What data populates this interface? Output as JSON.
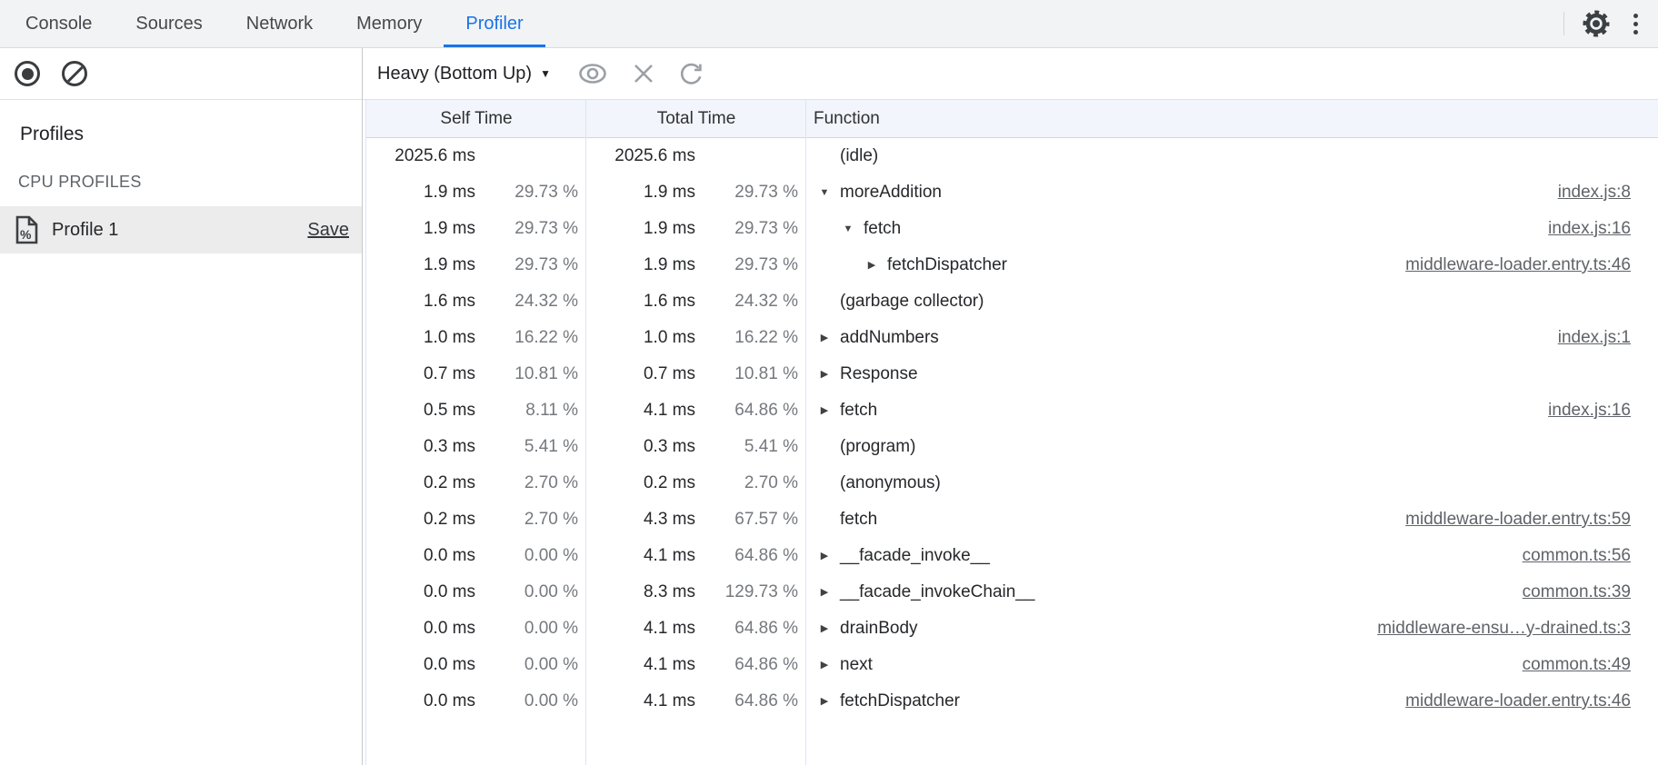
{
  "colors": {
    "accent_blue": "#1a73e8",
    "tab_bar_bg": "#f1f3f4",
    "selected_profile_bg": "#ececec",
    "grid_header_bg": "#f2f5fb",
    "grid_line": "#dce4f7",
    "percent_text": "#75797e",
    "link_text": "#5f6368",
    "icon_gray": "#9aa0a6",
    "icon_dark": "#3c4043"
  },
  "tabs": {
    "items": [
      "Console",
      "Sources",
      "Network",
      "Memory",
      "Profiler"
    ],
    "active": "Profiler"
  },
  "top_icons": [
    "gear-icon",
    "kebab-menu-icon"
  ],
  "toolbar": {
    "record_icon": "record-icon",
    "clear_icon": "clear-icon",
    "view_mode": "Heavy (Bottom Up)",
    "caret": "▼",
    "icons": [
      "eye-icon",
      "close-icon",
      "refresh-icon"
    ]
  },
  "sidebar": {
    "heading": "Profiles",
    "section_label": "CPU PROFILES",
    "profile": {
      "icon": "profile-document-icon",
      "name": "Profile 1",
      "action": "Save"
    }
  },
  "table": {
    "headers": {
      "self": "Self Time",
      "total": "Total Time",
      "function": "Function"
    },
    "rows": [
      {
        "self_ms": "2025.6 ms",
        "self_pct": "",
        "total_ms": "2025.6 ms",
        "total_pct": "",
        "depth": 0,
        "arrow": "",
        "name": "(idle)",
        "link": ""
      },
      {
        "self_ms": "1.9 ms",
        "self_pct": "29.73 %",
        "total_ms": "1.9 ms",
        "total_pct": "29.73 %",
        "depth": 0,
        "arrow": "down",
        "name": "moreAddition",
        "link": "index.js:8"
      },
      {
        "self_ms": "1.9 ms",
        "self_pct": "29.73 %",
        "total_ms": "1.9 ms",
        "total_pct": "29.73 %",
        "depth": 1,
        "arrow": "down",
        "name": "fetch",
        "link": "index.js:16"
      },
      {
        "self_ms": "1.9 ms",
        "self_pct": "29.73 %",
        "total_ms": "1.9 ms",
        "total_pct": "29.73 %",
        "depth": 2,
        "arrow": "right",
        "name": "fetchDispatcher",
        "link": "middleware-loader.entry.ts:46"
      },
      {
        "self_ms": "1.6 ms",
        "self_pct": "24.32 %",
        "total_ms": "1.6 ms",
        "total_pct": "24.32 %",
        "depth": 0,
        "arrow": "",
        "name": "(garbage collector)",
        "link": ""
      },
      {
        "self_ms": "1.0 ms",
        "self_pct": "16.22 %",
        "total_ms": "1.0 ms",
        "total_pct": "16.22 %",
        "depth": 0,
        "arrow": "right",
        "name": "addNumbers",
        "link": "index.js:1"
      },
      {
        "self_ms": "0.7 ms",
        "self_pct": "10.81 %",
        "total_ms": "0.7 ms",
        "total_pct": "10.81 %",
        "depth": 0,
        "arrow": "right",
        "name": "Response",
        "link": ""
      },
      {
        "self_ms": "0.5 ms",
        "self_pct": "8.11 %",
        "total_ms": "4.1 ms",
        "total_pct": "64.86 %",
        "depth": 0,
        "arrow": "right",
        "name": "fetch",
        "link": "index.js:16"
      },
      {
        "self_ms": "0.3 ms",
        "self_pct": "5.41 %",
        "total_ms": "0.3 ms",
        "total_pct": "5.41 %",
        "depth": 0,
        "arrow": "",
        "name": "(program)",
        "link": ""
      },
      {
        "self_ms": "0.2 ms",
        "self_pct": "2.70 %",
        "total_ms": "0.2 ms",
        "total_pct": "2.70 %",
        "depth": 0,
        "arrow": "",
        "name": "(anonymous)",
        "link": ""
      },
      {
        "self_ms": "0.2 ms",
        "self_pct": "2.70 %",
        "total_ms": "4.3 ms",
        "total_pct": "67.57 %",
        "depth": 0,
        "arrow": "",
        "name": "fetch",
        "link": "middleware-loader.entry.ts:59"
      },
      {
        "self_ms": "0.0 ms",
        "self_pct": "0.00 %",
        "total_ms": "4.1 ms",
        "total_pct": "64.86 %",
        "depth": 0,
        "arrow": "right",
        "name": "__facade_invoke__",
        "link": "common.ts:56"
      },
      {
        "self_ms": "0.0 ms",
        "self_pct": "0.00 %",
        "total_ms": "8.3 ms",
        "total_pct": "129.73 %",
        "depth": 0,
        "arrow": "right",
        "name": "__facade_invokeChain__",
        "link": "common.ts:39"
      },
      {
        "self_ms": "0.0 ms",
        "self_pct": "0.00 %",
        "total_ms": "4.1 ms",
        "total_pct": "64.86 %",
        "depth": 0,
        "arrow": "right",
        "name": "drainBody",
        "link": "middleware-ensu…y-drained.ts:3"
      },
      {
        "self_ms": "0.0 ms",
        "self_pct": "0.00 %",
        "total_ms": "4.1 ms",
        "total_pct": "64.86 %",
        "depth": 0,
        "arrow": "right",
        "name": "next",
        "link": "common.ts:49"
      },
      {
        "self_ms": "0.0 ms",
        "self_pct": "0.00 %",
        "total_ms": "4.1 ms",
        "total_pct": "64.86 %",
        "depth": 0,
        "arrow": "right",
        "name": "fetchDispatcher",
        "link": "middleware-loader.entry.ts:46"
      }
    ]
  }
}
